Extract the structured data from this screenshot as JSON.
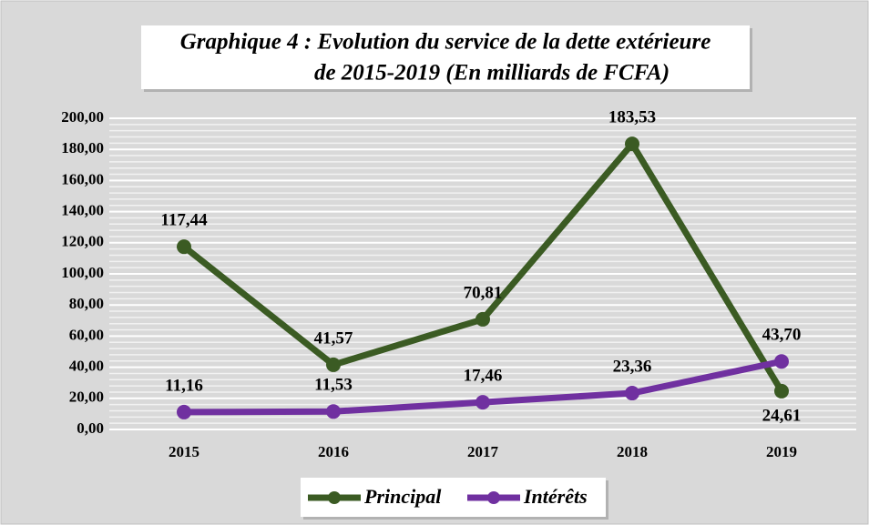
{
  "chart_data": {
    "type": "line",
    "title": [
      "Graphique 4 : Evolution du service de la dette extérieure",
      "de 2015-2019  (En milliards de FCFA)"
    ],
    "categories": [
      "2015",
      "2016",
      "2017",
      "2018",
      "2019"
    ],
    "series": [
      {
        "name": "Principal",
        "color": "#3b5b23",
        "values": [
          117.44,
          41.57,
          70.81,
          183.53,
          24.61
        ],
        "value_labels": [
          "117,44",
          "41,57",
          "70,81",
          "183,53",
          "24,61"
        ]
      },
      {
        "name": "Intérêts",
        "color": "#7030a0",
        "values": [
          11.16,
          11.53,
          17.46,
          23.36,
          43.7
        ],
        "value_labels": [
          "11,16",
          "11,53",
          "17,46",
          "23,36",
          "43,70"
        ]
      }
    ],
    "ylim": [
      0,
      200
    ],
    "yticks": [
      {
        "value": 0,
        "label": "0,00"
      },
      {
        "value": 20,
        "label": "20,00"
      },
      {
        "value": 40,
        "label": "40,00"
      },
      {
        "value": 60,
        "label": "60,00"
      },
      {
        "value": 80,
        "label": "80,00"
      },
      {
        "value": 100,
        "label": "100,00"
      },
      {
        "value": 120,
        "label": "120,00"
      },
      {
        "value": 140,
        "label": "140,00"
      },
      {
        "value": 160,
        "label": "160,00"
      },
      {
        "value": 180,
        "label": "180,00"
      },
      {
        "value": 200,
        "label": "200,00"
      }
    ],
    "grid": true,
    "legend": "bottom"
  }
}
